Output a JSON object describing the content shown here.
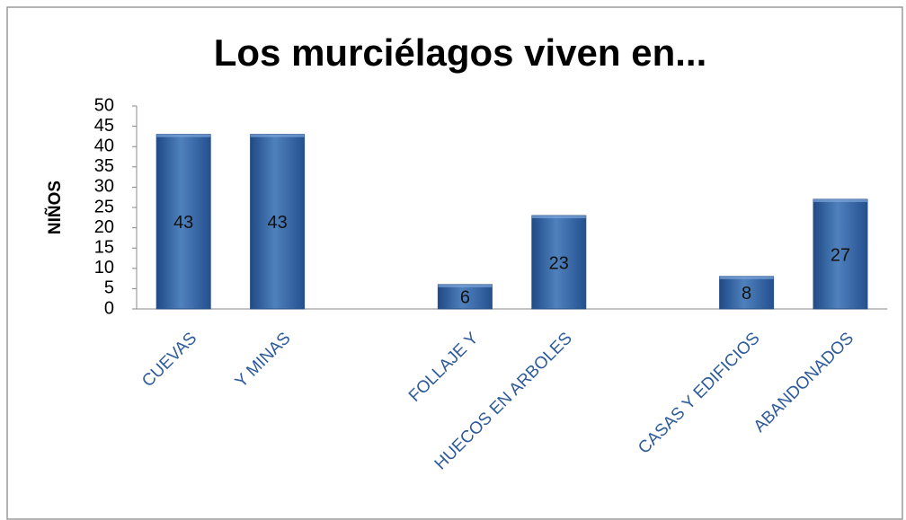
{
  "chart_data": {
    "type": "bar",
    "title": "Los murciélagos viven en...",
    "y_label": "NIÑOS",
    "categories": [
      "CUEVAS",
      "Y MINAS",
      null,
      "FOLLAJE Y",
      "HUECOS EN ARBOLES",
      null,
      "CASAS Y EDIFICIOS",
      "ABANDONADOS"
    ],
    "values": [
      43,
      43,
      null,
      6,
      23,
      null,
      8,
      27
    ],
    "color": "#4f81bd",
    "ylim": [
      0,
      50
    ],
    "yticks": [
      0,
      5,
      10,
      15,
      20,
      25,
      30,
      35,
      40,
      45,
      50
    ],
    "grid": false
  }
}
